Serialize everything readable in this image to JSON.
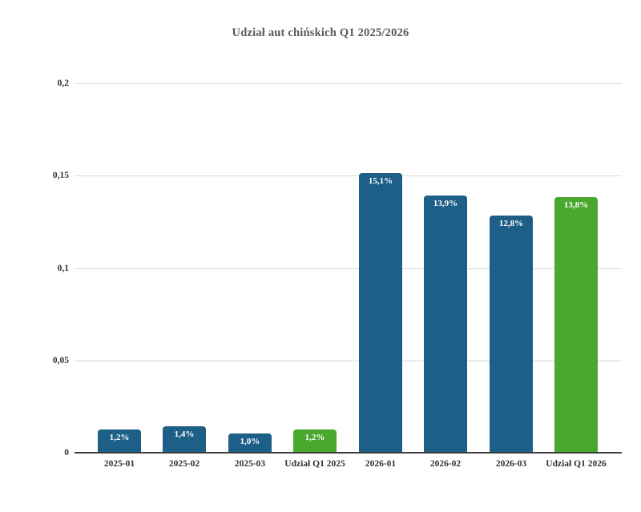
{
  "chart_data": {
    "type": "bar",
    "title": "Udział aut chińskich Q1 2025/2026",
    "categories": [
      "2025-01",
      "2025-02",
      "2025-03",
      "Udział Q1 2025",
      "2026-01",
      "2026-02",
      "2026-03",
      "Udział Q1 2026"
    ],
    "values": [
      0.012,
      0.014,
      0.01,
      0.012,
      0.151,
      0.139,
      0.128,
      0.138
    ],
    "value_labels": [
      "1,2%",
      "1,4%",
      "1,0%",
      "1,2%",
      "15,1%",
      "13,9%",
      "12,8%",
      "13,8%"
    ],
    "bar_colors": [
      "#1d5f87",
      "#1d5f87",
      "#1d5f87",
      "#4aa82e",
      "#1d5f87",
      "#1d5f87",
      "#1d5f87",
      "#4aa82e"
    ],
    "y_ticks": {
      "values": [
        0,
        0.05,
        0.1,
        0.15,
        0.2
      ],
      "labels": [
        "0",
        "0,05",
        "0,1",
        "0,15",
        "0,2"
      ]
    },
    "ylim": [
      0,
      0.2
    ],
    "xlabel": "",
    "ylabel": "",
    "grid": true,
    "legend": "none"
  },
  "colors": {
    "bar_blue": "#1d5f87",
    "bar_green": "#4aa82e",
    "title_text": "#595959",
    "tick_text": "#333333",
    "gridline": "#d9d9d9",
    "axis_line": "#3d3d3d",
    "value_label_text": "#ffffff",
    "background": "#ffffff"
  }
}
